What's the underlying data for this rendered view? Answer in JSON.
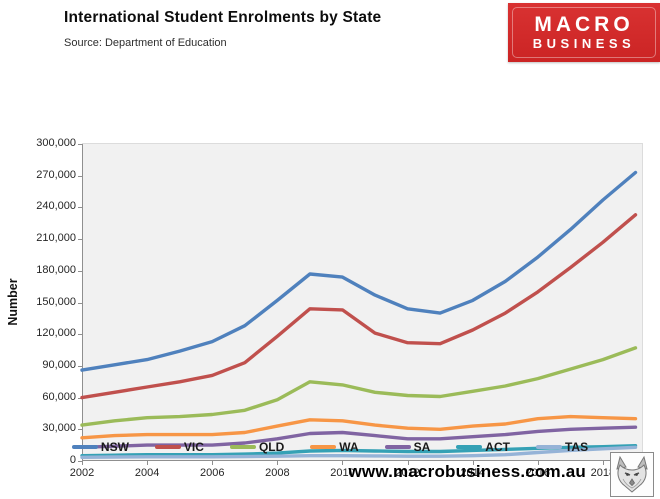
{
  "header": {
    "title": "International Student Enrolments by State",
    "source": "Source: Department of Education"
  },
  "logo": {
    "line1": "MACRO",
    "line2": "BUSINESS",
    "bg_color": "#CE2727"
  },
  "footer": {
    "url": "www.macrobusiness.com.au",
    "wolf_icon": "wolf-sketch-image"
  },
  "chart_data": {
    "type": "line",
    "title": "International Student Enrolments by State",
    "xlabel": "",
    "ylabel": "Number",
    "grid": false,
    "legend_position": "bottom",
    "plot_background": "#F1F1F1",
    "xlim": [
      2002,
      2019.2
    ],
    "ylim": [
      0,
      300000
    ],
    "x": [
      2002,
      2003,
      2004,
      2005,
      2006,
      2007,
      2008,
      2009,
      2010,
      2011,
      2012,
      2013,
      2014,
      2015,
      2016,
      2017,
      2018,
      2019
    ],
    "x_tick_values": [
      2002,
      2004,
      2006,
      2008,
      2010,
      2012,
      2014,
      2016,
      2018
    ],
    "x_tick_labels": [
      "2002",
      "2004",
      "2006",
      "2008",
      "2010",
      "2012",
      "2014",
      "2016",
      "2018"
    ],
    "y_tick_values": [
      0,
      30000,
      60000,
      90000,
      120000,
      150000,
      180000,
      210000,
      240000,
      270000,
      300000
    ],
    "y_tick_labels": [
      "0",
      "30,000",
      "60,000",
      "90,000",
      "120,000",
      "150,000",
      "180,000",
      "210,000",
      "240,000",
      "270,000",
      "300,000"
    ],
    "series": [
      {
        "name": "NSW",
        "color": "#4F81BD",
        "values": [
          86000,
          91000,
          96000,
          104000,
          113000,
          128000,
          152000,
          177000,
          174000,
          157000,
          144000,
          140000,
          152000,
          170000,
          193000,
          219000,
          247000,
          273000
        ]
      },
      {
        "name": "VIC",
        "color": "#C0504D",
        "values": [
          60000,
          65000,
          70000,
          75000,
          81000,
          93000,
          118000,
          144000,
          143000,
          121000,
          112000,
          111000,
          124000,
          140000,
          160000,
          183000,
          207000,
          233000
        ]
      },
      {
        "name": "QLD",
        "color": "#9BBB59",
        "values": [
          34000,
          38000,
          41000,
          42000,
          44000,
          48000,
          58000,
          75000,
          72000,
          65000,
          62000,
          61000,
          66000,
          71000,
          78000,
          87000,
          96000,
          107000
        ]
      },
      {
        "name": "WA",
        "color": "#F79646",
        "values": [
          22000,
          24000,
          25000,
          25000,
          25000,
          27000,
          33000,
          39000,
          38000,
          34000,
          31000,
          30000,
          33000,
          35000,
          40000,
          42000,
          41000,
          40000
        ]
      },
      {
        "name": "SA",
        "color": "#8064A2",
        "values": [
          13000,
          14000,
          15000,
          15000,
          15000,
          17000,
          21000,
          26000,
          27000,
          24000,
          21000,
          21000,
          23000,
          25000,
          28000,
          30000,
          31000,
          32000
        ]
      },
      {
        "name": "ACT",
        "color": "#35A1B5",
        "values": [
          5000,
          5500,
          6000,
          6000,
          6000,
          6500,
          7500,
          9500,
          10000,
          9500,
          9000,
          9000,
          10000,
          11000,
          12000,
          13000,
          13500,
          14500
        ]
      },
      {
        "name": "TAS",
        "color": "#95B3D7",
        "values": [
          3500,
          3800,
          4000,
          4000,
          4000,
          4200,
          4500,
          5000,
          5000,
          4800,
          4500,
          4500,
          5000,
          6000,
          8000,
          10000,
          11500,
          13000
        ]
      }
    ]
  }
}
